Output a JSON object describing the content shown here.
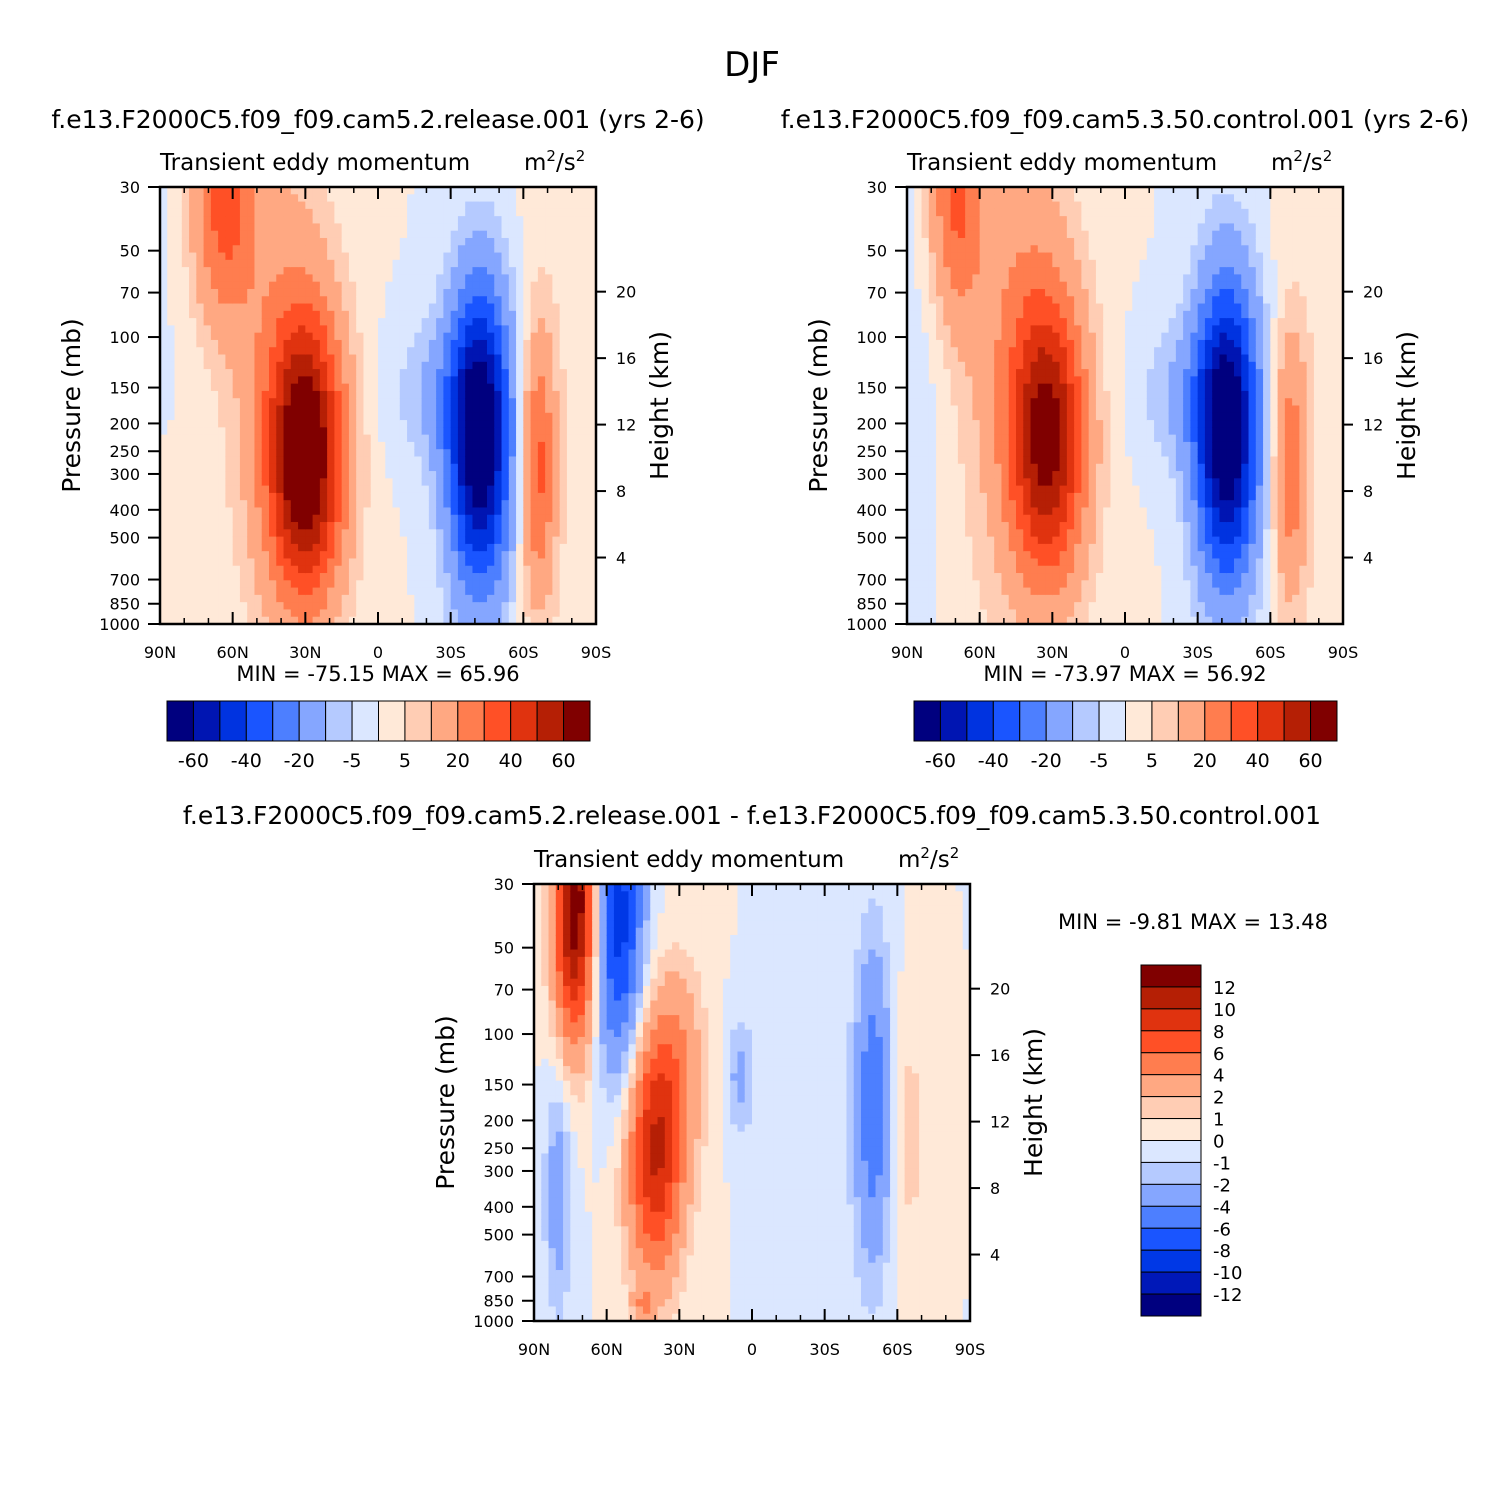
{
  "title": "DJF",
  "colors": {
    "left_scale": [
      "#00007f",
      "#0015b2",
      "#0033e0",
      "#1a55ff",
      "#4d7fff",
      "#85a6ff",
      "#b5caff",
      "#dbe7ff",
      "#ffe9d8",
      "#ffcdb4",
      "#ffa882",
      "#ff7d4f",
      "#ff5026",
      "#e0330f",
      "#b51f05",
      "#800000"
    ],
    "diff_scale": [
      "#00007f",
      "#0018b8",
      "#0038e6",
      "#1a55ff",
      "#4d7fff",
      "#85a6ff",
      "#b5caff",
      "#dbe7ff",
      "#ffe9d8",
      "#ffcdb4",
      "#ffa882",
      "#ff7d4f",
      "#ff5026",
      "#e0330f",
      "#b51f05",
      "#800000"
    ]
  },
  "chart_data": [
    {
      "id": "panel1",
      "type": "heatmap",
      "case_title": "f.e13.F2000C5.f09_f09.cam5.2.release.001 (yrs 2-6)",
      "variable": "Transient eddy momentum",
      "units_base": "m",
      "units_exp": "2",
      "units_sep": "/s",
      "units_exp2": "2",
      "ylabel": "Pressure (mb)",
      "y2label": "Height (km)",
      "xticks": [
        "90N",
        "60N",
        "30N",
        "0",
        "30S",
        "60S",
        "90S"
      ],
      "yticks": [
        "30",
        "50",
        "70",
        "100",
        "150",
        "200",
        "250",
        "300",
        "400",
        "500",
        "700",
        "850",
        "1000"
      ],
      "y2ticks": [
        "20",
        "16",
        "12",
        "8",
        "4"
      ],
      "min_label": "MIN =",
      "min": "-75.15",
      "max_label": "MAX =",
      "max": "65.96",
      "levels": [
        "-60",
        "-40",
        "-20",
        "-5",
        "5",
        "20",
        "40",
        "60"
      ],
      "blobs": [
        {
          "lat": 30,
          "logp": 2.42,
          "sx": 11,
          "sy": 0.34,
          "amp": 72
        },
        {
          "lat": 64,
          "logp": 1.55,
          "sx": 9,
          "sy": 0.28,
          "amp": 32
        },
        {
          "lat": 42,
          "logp": 1.9,
          "sx": 16,
          "sy": 0.55,
          "amp": 12
        },
        {
          "lat": -42,
          "logp": 2.35,
          "sx": 9,
          "sy": 0.36,
          "amp": -75
        },
        {
          "lat": -25,
          "logp": 2.2,
          "sx": 14,
          "sy": 0.18,
          "amp": -10
        },
        {
          "lat": -66,
          "logp": 2.45,
          "sx": 5,
          "sy": 0.32,
          "amp": 32
        },
        {
          "lat": -78,
          "logp": 2.0,
          "sx": 14,
          "sy": 1.4,
          "amp": 3
        },
        {
          "lat": 75,
          "logp": 2.2,
          "sx": 20,
          "sy": 1.2,
          "amp": -2
        },
        {
          "lat": 60,
          "logp": 2.8,
          "sx": 30,
          "sy": 0.6,
          "amp": 3
        }
      ]
    },
    {
      "id": "panel2",
      "type": "heatmap",
      "case_title": "f.e13.F2000C5.f09_f09.cam5.3.50.control.001 (yrs 2-6)",
      "variable": "Transient eddy momentum",
      "units_base": "m",
      "units_exp": "2",
      "units_sep": "/s",
      "units_exp2": "2",
      "ylabel": "Pressure (mb)",
      "y2label": "Height (km)",
      "xticks": [
        "90N",
        "60N",
        "30N",
        "0",
        "30S",
        "60S",
        "90S"
      ],
      "yticks": [
        "30",
        "50",
        "70",
        "100",
        "150",
        "200",
        "250",
        "300",
        "400",
        "500",
        "700",
        "850",
        "1000"
      ],
      "y2ticks": [
        "20",
        "16",
        "12",
        "8",
        "4"
      ],
      "min_label": "MIN =",
      "min": "-73.97",
      "max_label": "MAX =",
      "max": "56.92",
      "levels": [
        "-60",
        "-40",
        "-20",
        "-5",
        "5",
        "20",
        "40",
        "60"
      ],
      "blobs": [
        {
          "lat": 32,
          "logp": 2.36,
          "sx": 11,
          "sy": 0.34,
          "amp": 60
        },
        {
          "lat": 70,
          "logp": 1.5,
          "sx": 8,
          "sy": 0.3,
          "amp": 30
        },
        {
          "lat": 45,
          "logp": 1.85,
          "sx": 16,
          "sy": 0.55,
          "amp": 14
        },
        {
          "lat": -42,
          "logp": 2.33,
          "sx": 9,
          "sy": 0.36,
          "amp": -74
        },
        {
          "lat": -25,
          "logp": 2.2,
          "sx": 14,
          "sy": 0.18,
          "amp": -10
        },
        {
          "lat": -68,
          "logp": 2.45,
          "sx": 5,
          "sy": 0.32,
          "amp": 26
        },
        {
          "lat": -80,
          "logp": 2.0,
          "sx": 12,
          "sy": 1.4,
          "amp": 3
        },
        {
          "lat": 82,
          "logp": 1.9,
          "sx": 8,
          "sy": 1.2,
          "amp": -4
        },
        {
          "lat": 55,
          "logp": 2.8,
          "sx": 30,
          "sy": 0.6,
          "amp": 3
        }
      ]
    },
    {
      "id": "panel3",
      "type": "heatmap",
      "case_title": "f.e13.F2000C5.f09_f09.cam5.2.release.001 - f.e13.F2000C5.f09_f09.cam5.3.50.control.001",
      "variable": "Transient eddy momentum",
      "units_base": "m",
      "units_exp": "2",
      "units_sep": "/s",
      "units_exp2": "2",
      "ylabel": "Pressure (mb)",
      "y2label": "Height (km)",
      "xticks": [
        "90N",
        "60N",
        "30N",
        "0",
        "30S",
        "60S",
        "90S"
      ],
      "yticks": [
        "30",
        "50",
        "70",
        "100",
        "150",
        "200",
        "250",
        "300",
        "400",
        "500",
        "700",
        "850",
        "1000"
      ],
      "y2ticks": [
        "20",
        "16",
        "12",
        "8",
        "4"
      ],
      "min_label": "MIN =",
      "min": "-9.81",
      "max_label": "MAX =",
      "max": "13.48",
      "levels": [
        "12",
        "10",
        "8",
        "6",
        "4",
        "2",
        "1",
        "0",
        "-1",
        "-2",
        "-4",
        "-6",
        "-8",
        "-10",
        "-12"
      ],
      "blobs": [
        {
          "lat": 73,
          "logp": 1.55,
          "sx": 6,
          "sy": 0.32,
          "amp": 14
        },
        {
          "lat": 55,
          "logp": 1.6,
          "sx": 7,
          "sy": 0.36,
          "amp": -9
        },
        {
          "lat": 40,
          "logp": 2.42,
          "sx": 8,
          "sy": 0.3,
          "amp": 10
        },
        {
          "lat": 30,
          "logp": 2.1,
          "sx": 8,
          "sy": 0.25,
          "amp": 3
        },
        {
          "lat": -50,
          "logp": 2.25,
          "sx": 5,
          "sy": 0.38,
          "amp": -5.5
        },
        {
          "lat": 80,
          "logp": 2.55,
          "sx": 4,
          "sy": 0.3,
          "amp": -3
        },
        {
          "lat": -65,
          "logp": 2.35,
          "sx": 5,
          "sy": 0.3,
          "amp": 1.5
        },
        {
          "lat": 5,
          "logp": 2.15,
          "sx": 4,
          "sy": 0.15,
          "amp": -2.5
        },
        {
          "lat": -30,
          "logp": 2.5,
          "sx": 12,
          "sy": 0.8,
          "amp": -0.6
        },
        {
          "lat": 45,
          "logp": 2.95,
          "sx": 3,
          "sy": 0.05,
          "amp": 3
        }
      ]
    }
  ]
}
